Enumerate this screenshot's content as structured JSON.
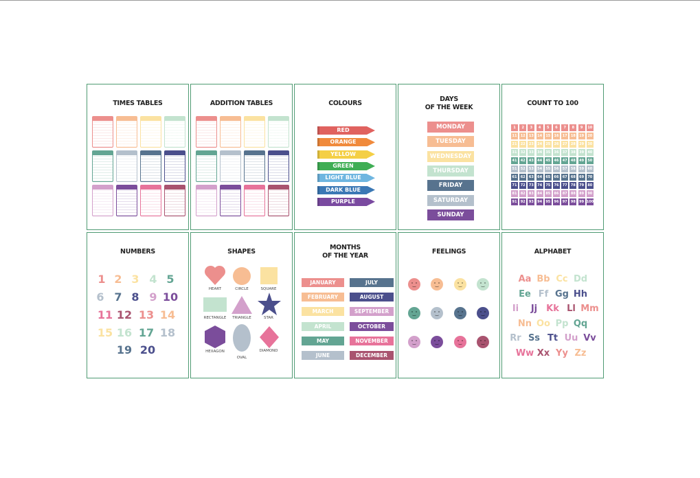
{
  "times_tables": {
    "title": "TIMES TABLES"
  },
  "addition_tables": {
    "title": "ADDITION TABLES"
  },
  "colours": {
    "title": "COLOURS",
    "items": [
      "RED",
      "ORANGE",
      "YELLOW",
      "GREEN",
      "LIGHT BLUE",
      "DARK BLUE",
      "PURPLE"
    ]
  },
  "days": {
    "title": [
      "DAYS",
      "OF THE WEEK"
    ],
    "items": [
      "MONDAY",
      "TUESDAY",
      "WEDNESDAY",
      "THURSDAY",
      "FRIDAY",
      "SATURDAY",
      "SUNDAY"
    ]
  },
  "count": {
    "title": "COUNT TO 100",
    "numbers": [
      1,
      2,
      3,
      4,
      5,
      6,
      7,
      8,
      9,
      10,
      11,
      12,
      13,
      14,
      15,
      16,
      17,
      18,
      19,
      20,
      21,
      22,
      23,
      24,
      25,
      26,
      27,
      28,
      29,
      30,
      31,
      32,
      33,
      34,
      35,
      36,
      37,
      38,
      39,
      40,
      41,
      42,
      43,
      44,
      45,
      46,
      47,
      48,
      49,
      50,
      51,
      52,
      53,
      54,
      55,
      56,
      57,
      58,
      59,
      60,
      61,
      62,
      63,
      64,
      65,
      66,
      67,
      68,
      69,
      70,
      71,
      72,
      73,
      74,
      75,
      76,
      77,
      78,
      79,
      80,
      81,
      82,
      83,
      84,
      85,
      86,
      87,
      88,
      89,
      90,
      91,
      92,
      93,
      94,
      95,
      96,
      97,
      98,
      99,
      100
    ]
  },
  "numbers": {
    "title": "NUMBERS",
    "items": [
      1,
      2,
      3,
      4,
      5,
      6,
      7,
      8,
      9,
      10,
      11,
      12,
      13,
      14,
      15,
      16,
      17,
      18,
      19,
      20
    ]
  },
  "shapes": {
    "title": "SHAPES",
    "items": [
      "HEART",
      "CIRCLE",
      "SQUARE",
      "RECTANGLE",
      "TRIANGLE",
      "STAR",
      "HEXAGON",
      "OVAL",
      "DIAMOND"
    ]
  },
  "months": {
    "title": [
      "MONTHS",
      "OF THE YEAR"
    ],
    "items": [
      "JANUARY",
      "FEBRUARY",
      "MARCH",
      "APRIL",
      "MAY",
      "JUNE",
      "JULY",
      "AUGUST",
      "SEPTEMBER",
      "OCTOBER",
      "NOVEMBER",
      "DECEMBER"
    ]
  },
  "feelings": {
    "title": "FEELINGS"
  },
  "alphabet": {
    "title": "ALPHABET",
    "rows": [
      [
        "Aa",
        "Bb",
        "Cc",
        "Dd"
      ],
      [
        "Ee",
        "Ff",
        "Gg",
        "Hh"
      ],
      [
        "Ii",
        "Jj",
        "Kk",
        "Ll",
        "Mm"
      ],
      [
        "Nn",
        "Oo",
        "Pp",
        "Qq"
      ],
      [
        "Rr",
        "Ss",
        "Tt",
        "Uu",
        "Vv"
      ],
      [
        "Ww",
        "Xx",
        "Yy",
        "Zz"
      ]
    ]
  }
}
